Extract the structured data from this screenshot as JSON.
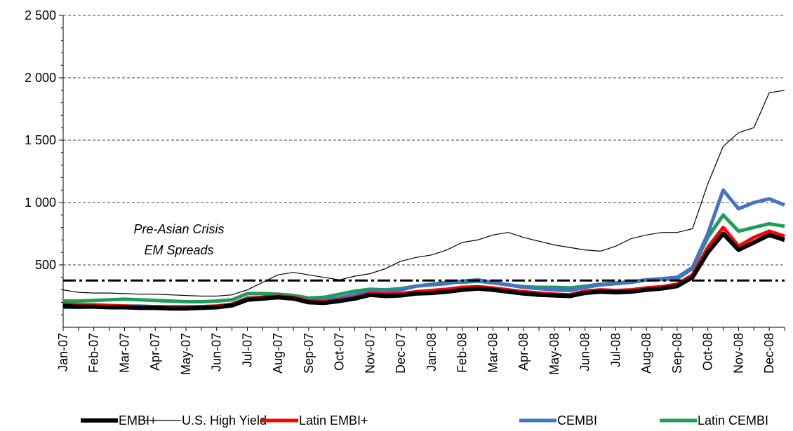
{
  "chart_data": {
    "type": "line",
    "categories": [
      "Jan-07",
      null,
      "Feb-07",
      null,
      "Mar-07",
      null,
      "Apr-07",
      null,
      "May-07",
      null,
      "Jun-07",
      null,
      "Jul-07",
      null,
      "Aug-07",
      null,
      "Sep-07",
      null,
      "Oct-07",
      null,
      "Nov-07",
      null,
      "Dec-07",
      null,
      "Jan-08",
      null,
      "Feb-08",
      null,
      "Mar-08",
      null,
      "Apr-08",
      null,
      "May-08",
      null,
      "Jun-08",
      null,
      "Jul-08",
      null,
      "Aug-08",
      null,
      "Sep-08",
      null,
      "Oct-08",
      null,
      "Nov-08",
      null,
      "Dec-08",
      null
    ],
    "series": [
      {
        "name": "EMBI+",
        "color": "#000000",
        "values": [
          170,
          165,
          165,
          160,
          160,
          155,
          155,
          150,
          150,
          155,
          160,
          175,
          220,
          230,
          240,
          230,
          200,
          195,
          210,
          230,
          260,
          250,
          255,
          270,
          275,
          285,
          300,
          310,
          300,
          285,
          270,
          260,
          255,
          250,
          275,
          285,
          280,
          285,
          300,
          310,
          330,
          400,
          600,
          750,
          620,
          680,
          740,
          700
        ]
      },
      {
        "name": "U.S. High Yield",
        "color": "#000000",
        "values": [
          300,
          280,
          275,
          275,
          270,
          265,
          265,
          260,
          255,
          250,
          250,
          260,
          300,
          360,
          420,
          440,
          420,
          400,
          380,
          410,
          430,
          470,
          530,
          560,
          580,
          620,
          680,
          700,
          740,
          760,
          720,
          690,
          660,
          640,
          620,
          610,
          650,
          710,
          740,
          760,
          760,
          790,
          1150,
          1450,
          1560,
          1600,
          1880,
          1900
        ]
      },
      {
        "name": "Latin EMBI+",
        "color": "#ff0000",
        "values": [
          185,
          180,
          180,
          175,
          170,
          165,
          165,
          160,
          160,
          165,
          170,
          185,
          230,
          240,
          250,
          240,
          210,
          205,
          220,
          240,
          270,
          265,
          270,
          285,
          295,
          305,
          320,
          325,
          315,
          300,
          285,
          275,
          265,
          260,
          290,
          300,
          295,
          300,
          315,
          325,
          345,
          420,
          640,
          800,
          650,
          720,
          770,
          730
        ]
      },
      {
        "name": "CEMBI",
        "color": "#4472c4",
        "values": [
          160,
          160,
          165,
          170,
          170,
          170,
          165,
          165,
          165,
          165,
          170,
          185,
          235,
          240,
          245,
          235,
          215,
          215,
          235,
          260,
          290,
          285,
          300,
          330,
          340,
          350,
          370,
          380,
          360,
          340,
          320,
          310,
          300,
          295,
          320,
          340,
          350,
          360,
          380,
          390,
          400,
          480,
          750,
          1100,
          950,
          1000,
          1030,
          980
        ]
      },
      {
        "name": "Latin CEMBI",
        "color": "#1f9e5a",
        "values": [
          210,
          210,
          215,
          220,
          225,
          220,
          215,
          210,
          205,
          205,
          210,
          220,
          270,
          270,
          265,
          255,
          235,
          240,
          265,
          290,
          305,
          300,
          310,
          330,
          345,
          360,
          360,
          370,
          355,
          340,
          325,
          320,
          320,
          315,
          330,
          345,
          355,
          365,
          380,
          385,
          390,
          470,
          720,
          900,
          770,
          800,
          830,
          810
        ]
      }
    ],
    "reference": 375,
    "annotations": [
      "Pre-Asian Crisis",
      "EM Spreads"
    ],
    "ylim": [
      0,
      2500
    ],
    "yticks": [
      {
        "value": 500,
        "label": "500"
      },
      {
        "value": 1000,
        "label": "1 000"
      },
      {
        "value": 1500,
        "label": "1 500"
      },
      {
        "value": 2000,
        "label": "2 000"
      },
      {
        "value": 2500,
        "label": "2 500"
      }
    ],
    "grid": true,
    "legend": "bottom"
  }
}
